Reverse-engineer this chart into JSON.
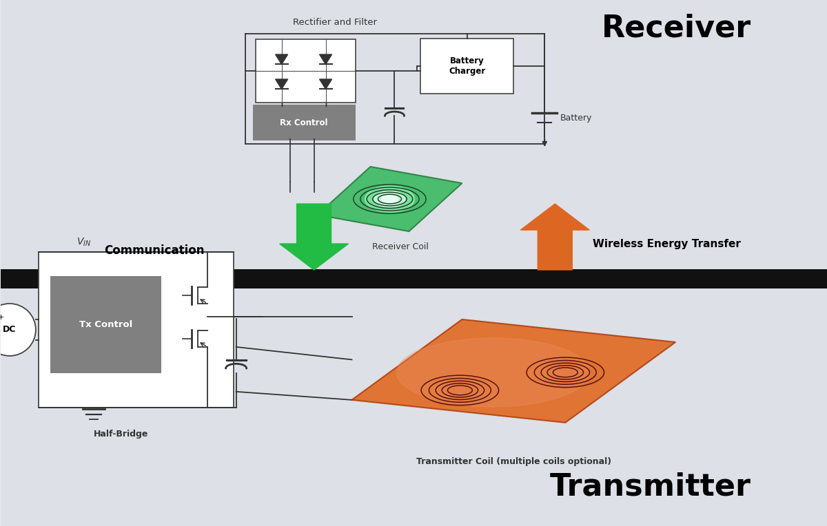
{
  "bg_color": "#e8eaee",
  "divider_color": "#111111",
  "title_receiver": "Receiver",
  "title_transmitter": "Transmitter",
  "title_fontsize": 32,
  "label_rectifier": "Rectifier and Filter",
  "label_receiver_coil": "Receiver Coil",
  "label_battery_charger": "Battery\nCharger",
  "label_battery": "Battery",
  "label_rx_control": "Rx Control",
  "label_communication": "Communication",
  "label_wireless_energy": "Wireless Energy Transfer",
  "label_dc": "DC",
  "label_tx_control": "Tx Control",
  "label_half_bridge": "Half-Bridge",
  "label_transmitter_coil": "Transmitter Coil (multiple coils optional)",
  "gray_box_color": "#808080",
  "line_color": "#333333",
  "green_arrow_color": "#22bb44",
  "orange_arrow_color": "#dd6622"
}
